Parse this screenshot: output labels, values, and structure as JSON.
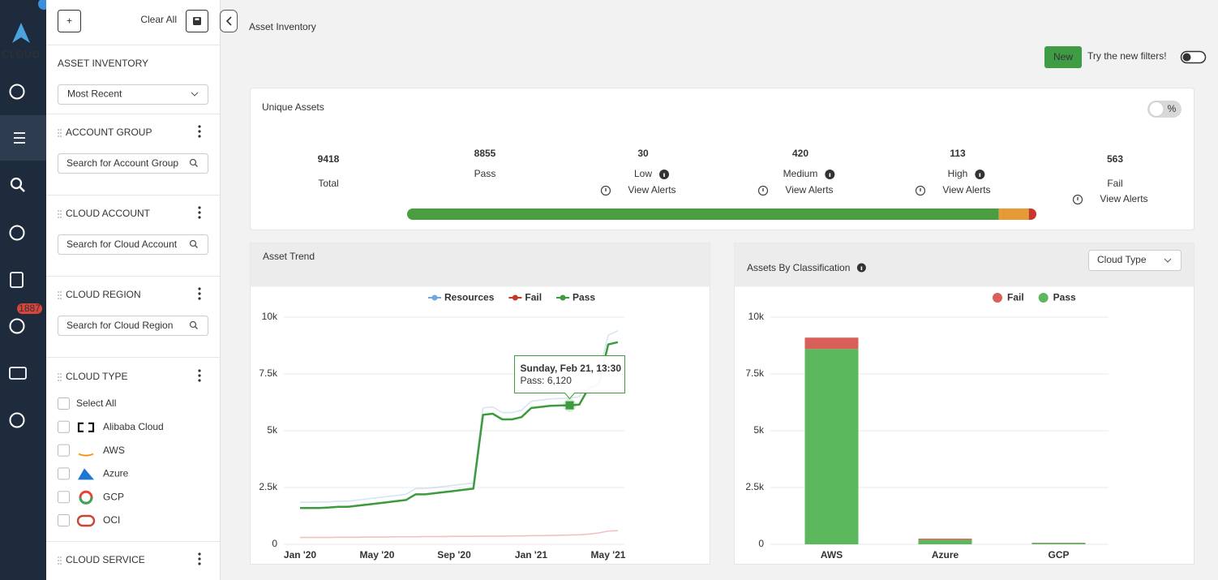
{
  "nav": {
    "logo": "CLOUD",
    "badge": "1887"
  },
  "filters": {
    "add_button": "+",
    "clear_all": "Clear All",
    "heading": "ASSET INVENTORY",
    "sort": "Most Recent",
    "sections": [
      {
        "title": "ACCOUNT GROUP",
        "search": "Search for Account Group"
      },
      {
        "title": "CLOUD ACCOUNT",
        "search": "Search for Cloud Account"
      },
      {
        "title": "CLOUD REGION",
        "search": "Search for Cloud Region"
      }
    ],
    "cloud_type": {
      "title": "CLOUD TYPE",
      "options": [
        "Select All",
        "Alibaba Cloud",
        "AWS",
        "Azure",
        "GCP",
        "OCI"
      ]
    },
    "cloud_service": {
      "title": "CLOUD SERVICE"
    }
  },
  "header": {
    "title": "Asset Inventory",
    "new_badge": "New",
    "new_filters": "Try the new filters!"
  },
  "summary": {
    "title": "Unique Assets",
    "toggle": "%",
    "stats": [
      {
        "value": 9418,
        "label": "Total"
      },
      {
        "value": 8855,
        "label": "Pass",
        "bar_color": "#4a9e3f"
      },
      {
        "value": 30,
        "label": "Low",
        "link": "View Alerts",
        "bar_color": "#e59a35"
      },
      {
        "value": 420,
        "label": "Medium",
        "link": "View Alerts",
        "bar_color": "#e59a35"
      },
      {
        "value": 113,
        "label": "High",
        "link": "View Alerts",
        "bar_color": "#c9372c"
      },
      {
        "value": 563,
        "label": "Fail",
        "link": "View Alerts"
      }
    ]
  },
  "chart_data": [
    {
      "type": "line",
      "title": "Asset Trend",
      "categories": [
        "Jan '20",
        null,
        null,
        null,
        null,
        null,
        null,
        null,
        "May '20",
        null,
        null,
        null,
        null,
        null,
        null,
        null,
        "Sep '20",
        null,
        null,
        null,
        null,
        null,
        null,
        null,
        "Jan '21",
        null,
        null,
        null,
        null,
        null,
        null,
        null,
        "May '21",
        null
      ],
      "series": [
        {
          "name": "Resources",
          "color": "#6fa8dc",
          "values": [
            1850,
            1850,
            1860,
            1870,
            1900,
            1900,
            1950,
            2000,
            2050,
            2100,
            2150,
            2200,
            2450,
            2460,
            2500,
            2550,
            2600,
            2650,
            2700,
            6000,
            6050,
            5800,
            5800,
            5900,
            6300,
            6350,
            6400,
            6420,
            6430,
            6500,
            7300,
            7500,
            9200,
            9400
          ]
        },
        {
          "name": "Fail",
          "color": "#c0392b",
          "values": [
            300,
            300,
            300,
            300,
            310,
            310,
            310,
            320,
            320,
            320,
            330,
            330,
            330,
            340,
            340,
            340,
            350,
            350,
            350,
            360,
            360,
            360,
            370,
            370,
            380,
            380,
            390,
            400,
            410,
            420,
            450,
            500,
            580,
            600
          ]
        },
        {
          "name": "Pass",
          "color": "#3d9a3d",
          "values": [
            1600,
            1600,
            1600,
            1620,
            1650,
            1650,
            1700,
            1750,
            1800,
            1850,
            1900,
            1950,
            2200,
            2200,
            2250,
            2300,
            2350,
            2400,
            2450,
            5700,
            5750,
            5500,
            5500,
            5600,
            6000,
            6050,
            6100,
            6110,
            6120,
            6150,
            6900,
            7000,
            8800,
            8900
          ]
        }
      ],
      "ylim": [
        0,
        10000
      ],
      "yticks": [
        0,
        {
          "value": 2500,
          "label": "2.5k"
        },
        {
          "value": 5000,
          "label": "5k"
        },
        {
          "value": 7500,
          "label": "7.5k"
        },
        {
          "value": 10000,
          "label": "10k"
        }
      ],
      "grid": true,
      "tooltip": {
        "title": "Sunday, Feb 21, 13:30",
        "text": "Pass: 6,120"
      }
    },
    {
      "type": "bar",
      "stacked": true,
      "title": "Assets By Classification",
      "dropdown": "Cloud Type",
      "categories": [
        "AWS",
        "Azure",
        "GCP"
      ],
      "series": [
        {
          "name": "Fail",
          "color": "#d9605a",
          "values": [
            500,
            50,
            13
          ]
        },
        {
          "name": "Pass",
          "color": "#5cb85c",
          "values": [
            8600,
            200,
            55
          ]
        }
      ],
      "ylim": [
        0,
        10000
      ],
      "yticks": [
        0,
        {
          "value": 2500,
          "label": "2.5k"
        },
        {
          "value": 5000,
          "label": "5k"
        },
        {
          "value": 7500,
          "label": "7.5k"
        },
        {
          "value": 10000,
          "label": "10k"
        }
      ],
      "grid": true
    }
  ]
}
